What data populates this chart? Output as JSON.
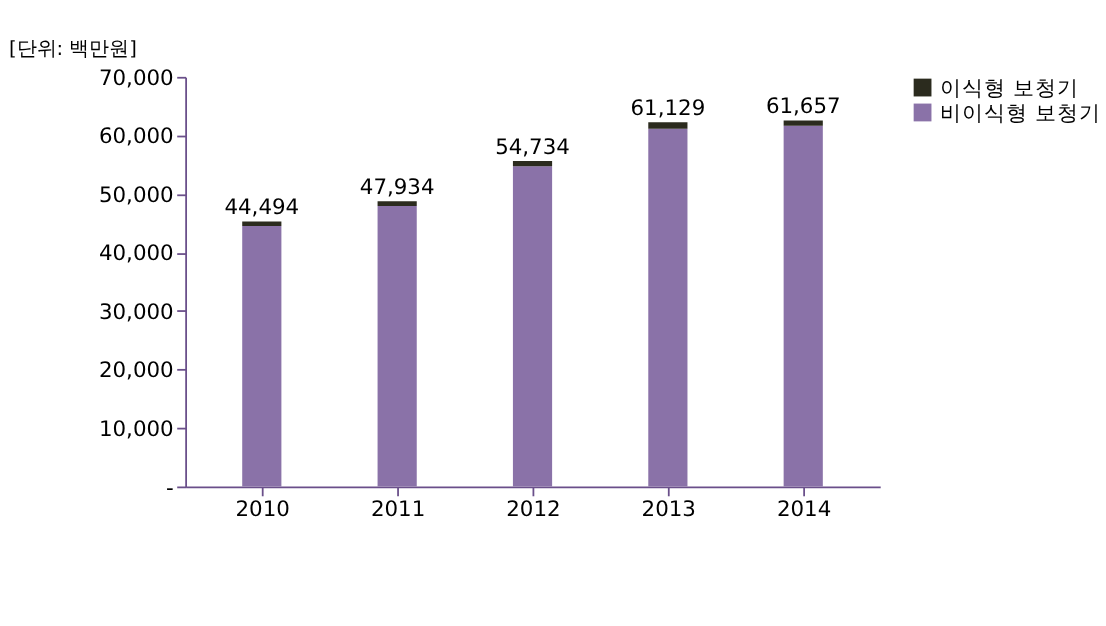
{
  "chart_data": {
    "type": "bar",
    "stacked": true,
    "categories": [
      "2010",
      "2011",
      "2012",
      "2013",
      "2014"
    ],
    "series": [
      {
        "name": "비이식형 보청기",
        "color": "#8a72a8",
        "values": [
          44494,
          47934,
          54734,
          61129,
          61657
        ],
        "value_labels": [
          "44,494",
          "47,934",
          "54,734",
          "61,129",
          "61,657"
        ]
      },
      {
        "name": "이식형 보청기",
        "color": "#2b2b1e",
        "values": [
          800,
          800,
          900,
          1100,
          900
        ]
      }
    ],
    "ylim": [
      0,
      70000
    ],
    "yticks": [
      {
        "value": 0,
        "label": "-"
      },
      {
        "value": 10000,
        "label": "10,000"
      },
      {
        "value": 20000,
        "label": "20,000"
      },
      {
        "value": 30000,
        "label": "30,000"
      },
      {
        "value": 40000,
        "label": "40,000"
      },
      {
        "value": 50000,
        "label": "50,000"
      },
      {
        "value": 60000,
        "label": "60,000"
      },
      {
        "value": 70000,
        "label": "70,000"
      }
    ],
    "annotations": [
      "[단위: 백만원]"
    ],
    "grid": false,
    "legend": "right"
  }
}
